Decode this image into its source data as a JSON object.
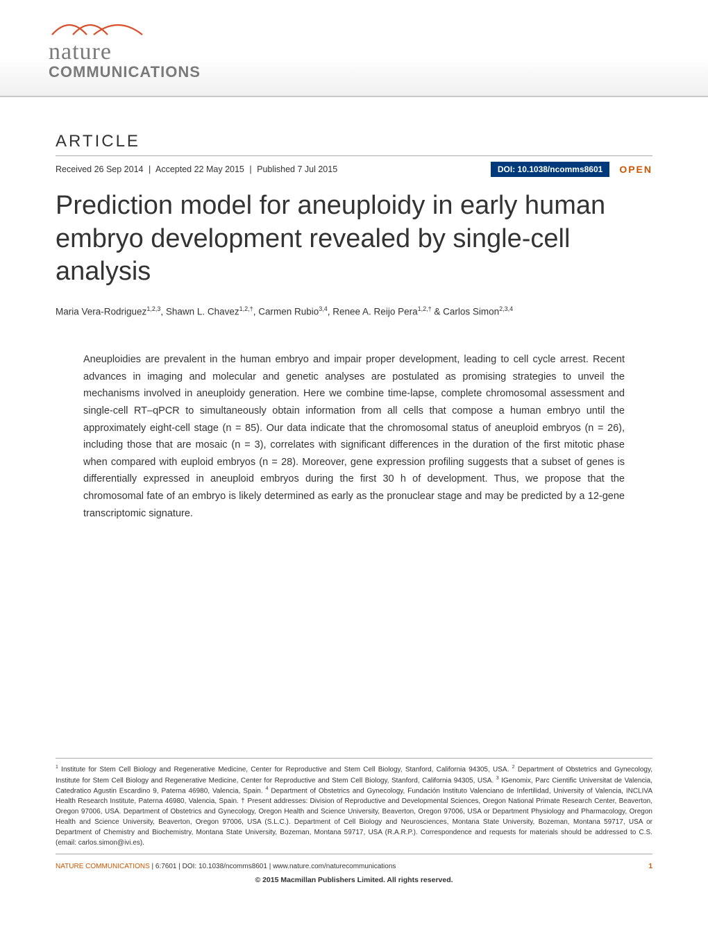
{
  "journal": {
    "logo_line1": "nature",
    "logo_line2": "COMMUNICATIONS",
    "swoosh_colors": [
      "#d94f2b",
      "#d94f2b",
      "#d94f2b"
    ]
  },
  "header": {
    "article_label": "ARTICLE",
    "received": "Received 26 Sep 2014",
    "accepted": "Accepted 22 May 2015",
    "published": "Published 7 Jul 2015",
    "separator": "|",
    "doi": "DOI: 10.1038/ncomms8601",
    "open_label": "OPEN",
    "doi_bg": "#003a7a",
    "open_color": "#cc5500"
  },
  "title": "Prediction model for aneuploidy in early human embryo development revealed by single-cell analysis",
  "authors_html": "Maria Vera-Rodriguez<sup>1,2,3</sup>, Shawn L. Chavez<sup>1,2,†</sup>, Carmen Rubio<sup>3,4</sup>, Renee A. Reijo Pera<sup>1,2,†</sup> & Carlos Simon<sup>2,3,4</sup>",
  "abstract": "Aneuploidies are prevalent in the human embryo and impair proper development, leading to cell cycle arrest. Recent advances in imaging and molecular and genetic analyses are postulated as promising strategies to unveil the mechanisms involved in aneuploidy generation. Here we combine time-lapse, complete chromosomal assessment and single-cell RT–qPCR to simultaneously obtain information from all cells that compose a human embryo until the approximately eight-cell stage (n = 85). Our data indicate that the chromosomal status of aneuploid embryos (n = 26), including those that are mosaic (n = 3), correlates with significant differences in the duration of the first mitotic phase when compared with euploid embryos (n = 28). Moreover, gene expression profiling suggests that a subset of genes is differentially expressed in aneuploid embryos during the first 30 h of development. Thus, we propose that the chromosomal fate of an embryo is likely determined as early as the pronuclear stage and may be predicted by a 12-gene transcriptomic signature.",
  "affiliations_html": "<sup>1</sup> Institute for Stem Cell Biology and Regenerative Medicine, Center for Reproductive and Stem Cell Biology, Stanford, California 94305, USA. <sup>2</sup> Department of Obstetrics and Gynecology, Institute for Stem Cell Biology and Regenerative Medicine, Center for Reproductive and Stem Cell Biology, Stanford, California 94305, USA. <sup>3</sup> IGenomix, Parc Cientific Universitat de Valencia, Catedratico Agustin Escardino 9, Paterna 46980, Valencia, Spain. <sup>4</sup> Department of Obstetrics and Gynecology, Fundación Instituto Valenciano de Infertilidad, University of Valencia, INCLIVA Health Research Institute, Paterna 46980, Valencia, Spain. † Present addresses: Division of Reproductive and Developmental Sciences, Oregon National Primate Research Center, Beaverton, Oregon 97006, USA. Department of Obstetrics and Gynecology, Oregon Health and Science University, Beaverton, Oregon 97006, USA or Department Physiology and Pharmacology, Oregon Health and Science University, Beaverton, Oregon 97006, USA (S.L.C.). Department of Cell Biology and Neurosciences, Montana State University, Bozeman, Montana 59717, USA or Department of Chemistry and Biochemistry, Montana State University, Bozeman, Montana 59717, USA (R.A.R.P.). Correspondence and requests for materials should be addressed to C.S. (email: carlos.simon@ivi.es).",
  "footer": {
    "citation_orange": "NATURE COMMUNICATIONS",
    "citation_black": " | 6:7601 | DOI: 10.1038/ncomms8601 | www.nature.com/naturecommunications",
    "page_number": "1",
    "copyright": "© 2015 Macmillan Publishers Limited. All rights reserved.",
    "accent_color": "#cc5500"
  },
  "typography": {
    "title_fontsize": 38,
    "title_weight": 300,
    "abstract_fontsize": 14.5,
    "authors_fontsize": 13.5,
    "affiliations_fontsize": 10,
    "footer_fontsize": 10
  },
  "colors": {
    "background": "#ffffff",
    "text": "#333333",
    "logo_gray": "#7a7a7a",
    "header_band_border": "#c8c8c8",
    "divider": "#aaaaaa"
  }
}
